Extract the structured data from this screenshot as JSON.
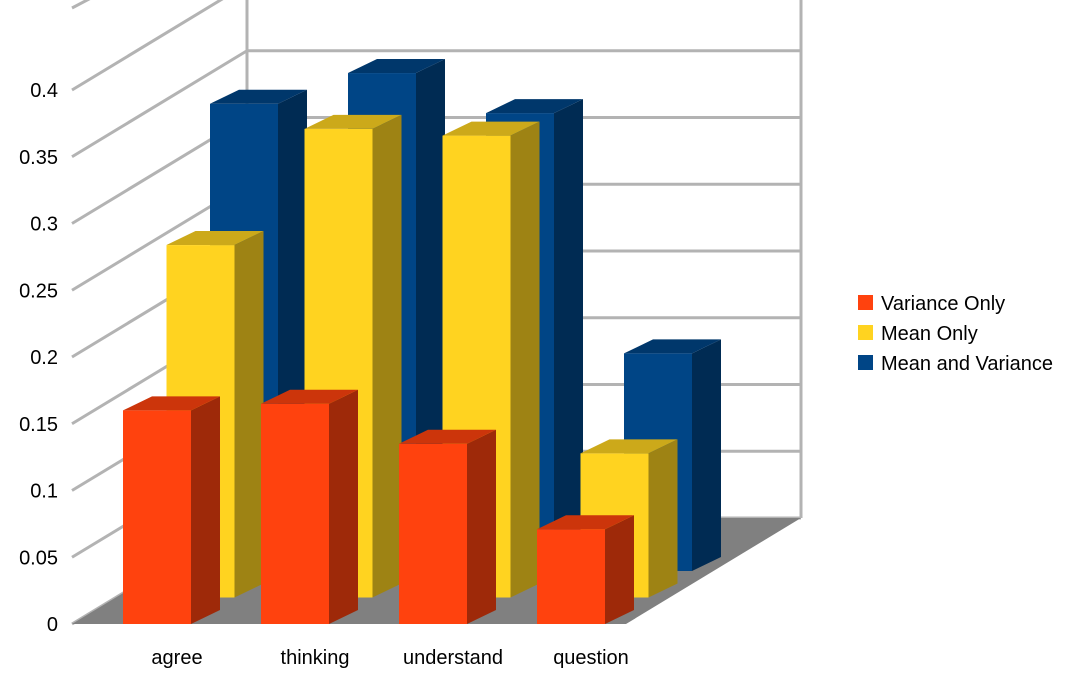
{
  "chart_data": {
    "type": "bar",
    "title": "",
    "xlabel": "",
    "ylabel": "",
    "categories": [
      "agree",
      "thinking",
      "understand",
      "question"
    ],
    "series": [
      {
        "name": "Variance Only",
        "values": [
          0.16,
          0.165,
          0.135,
          0.071
        ],
        "color": "#FF420E"
      },
      {
        "name": "Mean Only",
        "values": [
          0.264,
          0.351,
          0.346,
          0.108
        ],
        "color": "#FFD320"
      },
      {
        "name": "Mean and Variance",
        "values": [
          0.35,
          0.373,
          0.343,
          0.163
        ],
        "color": "#004586"
      }
    ],
    "ylim": [
      0,
      0.4
    ],
    "yticks": [
      "0",
      "0.05",
      "0.1",
      "0.15",
      "0.2",
      "0.25",
      "0.3",
      "0.35",
      "0.4"
    ],
    "grid": true,
    "legend_position": "right",
    "projection": "3d-perspective"
  }
}
